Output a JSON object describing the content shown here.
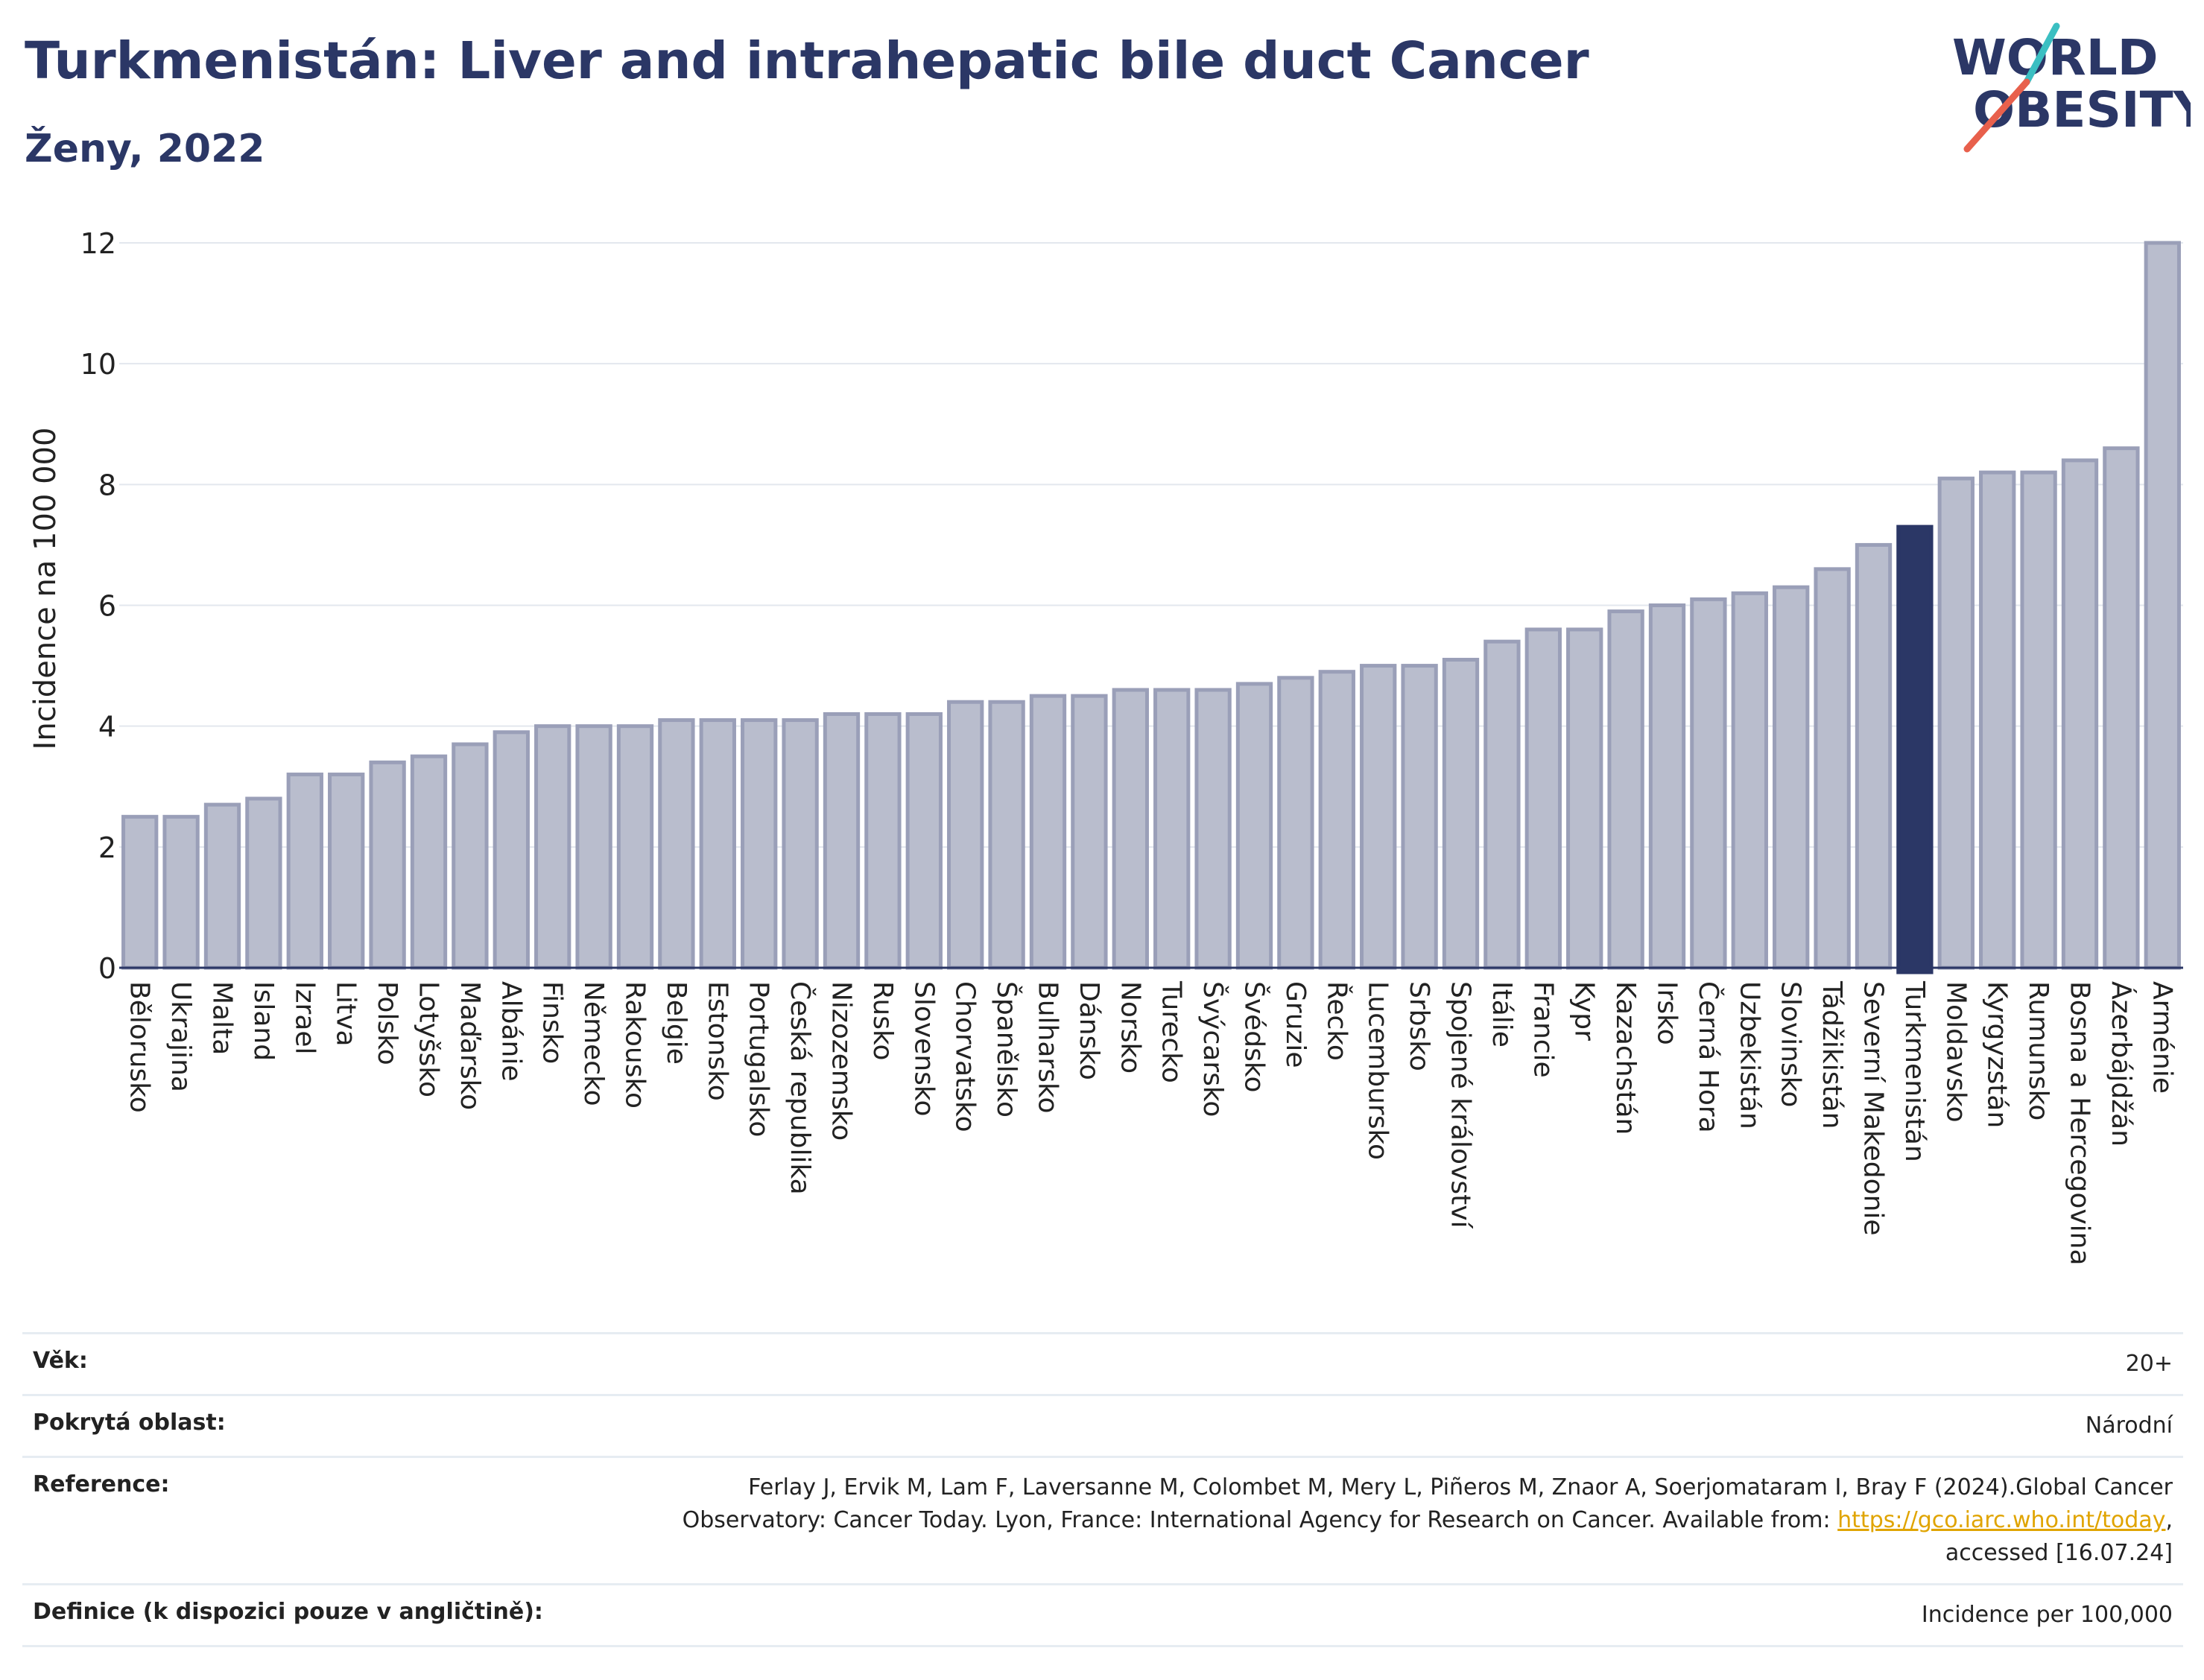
{
  "header": {
    "title": "Turkmenistán: Liver and intrahepatic bile duct Cancer",
    "subtitle": "Ženy, 2022"
  },
  "logo": {
    "line1": "WORLD",
    "line2": "OBESITY",
    "colors": {
      "text": "#2b3766",
      "slash_teal": "#3bbfc2",
      "slash_red": "#e8604c"
    }
  },
  "colors": {
    "bar_default": "#b9bdcd",
    "bar_border": "#9a9fb8",
    "bar_highlight": "#2b3766",
    "grid": "#e3e7ee"
  },
  "chart_data": {
    "type": "bar",
    "ylabel": "Incidence na 100 000",
    "ylim": [
      0,
      12
    ],
    "yticks": [
      0,
      2,
      4,
      6,
      8,
      10,
      12
    ],
    "grid": true,
    "highlight": "Turkmenistán",
    "categories": [
      "Bělorusko",
      "Ukrajina",
      "Malta",
      "Island",
      "Izrael",
      "Litva",
      "Polsko",
      "Lotyšsko",
      "Maďarsko",
      "Albánie",
      "Finsko",
      "Německo",
      "Rakousko",
      "Belgie",
      "Estonsko",
      "Portugalsko",
      "Česká republika",
      "Nizozemsko",
      "Rusko",
      "Slovensko",
      "Chorvatsko",
      "Španělsko",
      "Bulharsko",
      "Dánsko",
      "Norsko",
      "Turecko",
      "Švýcarsko",
      "Švédsko",
      "Gruzie",
      "Řecko",
      "Lucembursko",
      "Srbsko",
      "Spojené království",
      "Itálie",
      "Francie",
      "Kypr",
      "Kazachstán",
      "Irsko",
      "Černá Hora",
      "Uzbekistán",
      "Slovinsko",
      "Tádžikistán",
      "Severní Makedonie",
      "Turkmenistán",
      "Moldavsko",
      "Kyrgyzstán",
      "Rumunsko",
      "Bosna a Hercegovina",
      "Ázerbájdžán",
      "Arménie"
    ],
    "values": [
      2.5,
      2.5,
      2.7,
      2.8,
      3.2,
      3.2,
      3.4,
      3.5,
      3.7,
      3.9,
      4.0,
      4.0,
      4.0,
      4.1,
      4.1,
      4.1,
      4.1,
      4.2,
      4.2,
      4.2,
      4.4,
      4.4,
      4.5,
      4.5,
      4.6,
      4.6,
      4.6,
      4.7,
      4.8,
      4.9,
      5.0,
      5.0,
      5.1,
      5.4,
      5.6,
      5.6,
      5.9,
      6.0,
      6.1,
      6.2,
      6.3,
      6.6,
      7.0,
      7.3,
      8.1,
      8.2,
      8.2,
      8.4,
      8.6,
      12.0
    ]
  },
  "info": [
    {
      "label": "Věk:",
      "value": "20+"
    },
    {
      "label": "Pokrytá oblast:",
      "value": "Národní"
    },
    {
      "label": "Reference:",
      "value_line1": "Ferlay J, Ervik M, Lam F, Laversanne M, Colombet M, Mery L, Piñeros M, Znaor A, Soerjomataram I, Bray F (2024).Global Cancer",
      "value_line2_prefix": "Observatory: Cancer Today. Lyon, France: International Agency for Research on Cancer. Available from: ",
      "link": "https://gco.iarc.who.int/today",
      "value_line2_suffix": ",",
      "value_line3": "accessed [16.07.24]"
    },
    {
      "label": "Definice (k dispozici pouze v angličtině):",
      "value": "Incidence per 100,000"
    }
  ]
}
